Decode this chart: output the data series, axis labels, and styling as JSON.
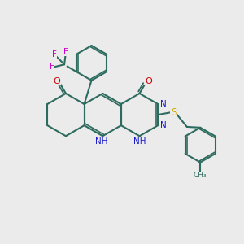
{
  "background_color": "#ebebeb",
  "bond_color": "#2d6b5e",
  "bond_width": 1.5,
  "nitrogen_color": "#1a1acc",
  "oxygen_color": "#cc0000",
  "fluorine_color": "#cc00cc",
  "sulfur_color": "#ccaa00",
  "figsize": [
    3.0,
    3.0
  ],
  "dpi": 100,
  "xlim": [
    0,
    10
  ],
  "ylim": [
    0,
    10
  ]
}
